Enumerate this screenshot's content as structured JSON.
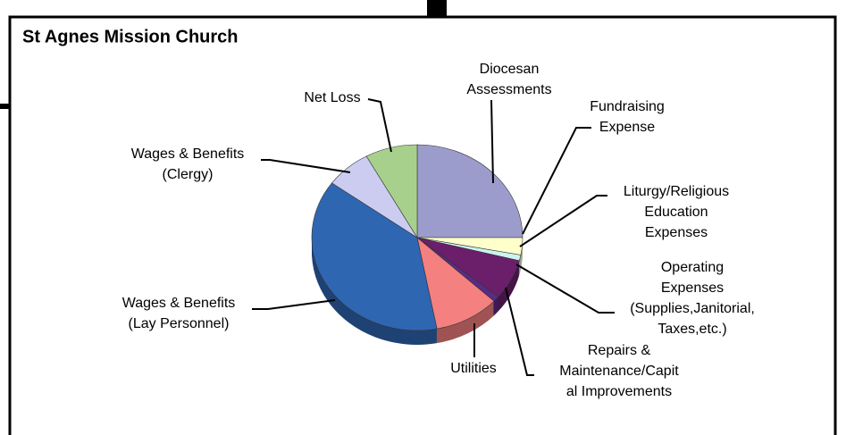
{
  "chart_data": {
    "type": "pie",
    "title": "St Agnes Mission Church",
    "categories": [
      [
        "Diocesan",
        "Assessments"
      ],
      [
        "Fundraising",
        "Expense"
      ],
      [
        "Liturgy/Religious",
        "Education",
        "Expenses"
      ],
      [
        "Operating",
        "Expenses",
        "(Supplies,Janitorial,",
        "Taxes,etc.)"
      ],
      [
        "Repairs &",
        "Maintenance/Capit",
        "al Improvements"
      ],
      [
        "Utilities"
      ],
      [
        "Wages & Benefits",
        "(Lay Personnel)"
      ],
      [
        "Wages & Benefits",
        "(Clergy)"
      ],
      [
        "Net Loss"
      ]
    ],
    "values": [
      25,
      3,
      1,
      7,
      1,
      10,
      38,
      7,
      8
    ],
    "colors": [
      "#9c9ccc",
      "#ffffcc",
      "#ccf2f2",
      "#6b1f6b",
      "#5b2a86",
      "#f48080",
      "#2e66b2",
      "#ccccf0",
      "#a8d08d"
    ]
  }
}
